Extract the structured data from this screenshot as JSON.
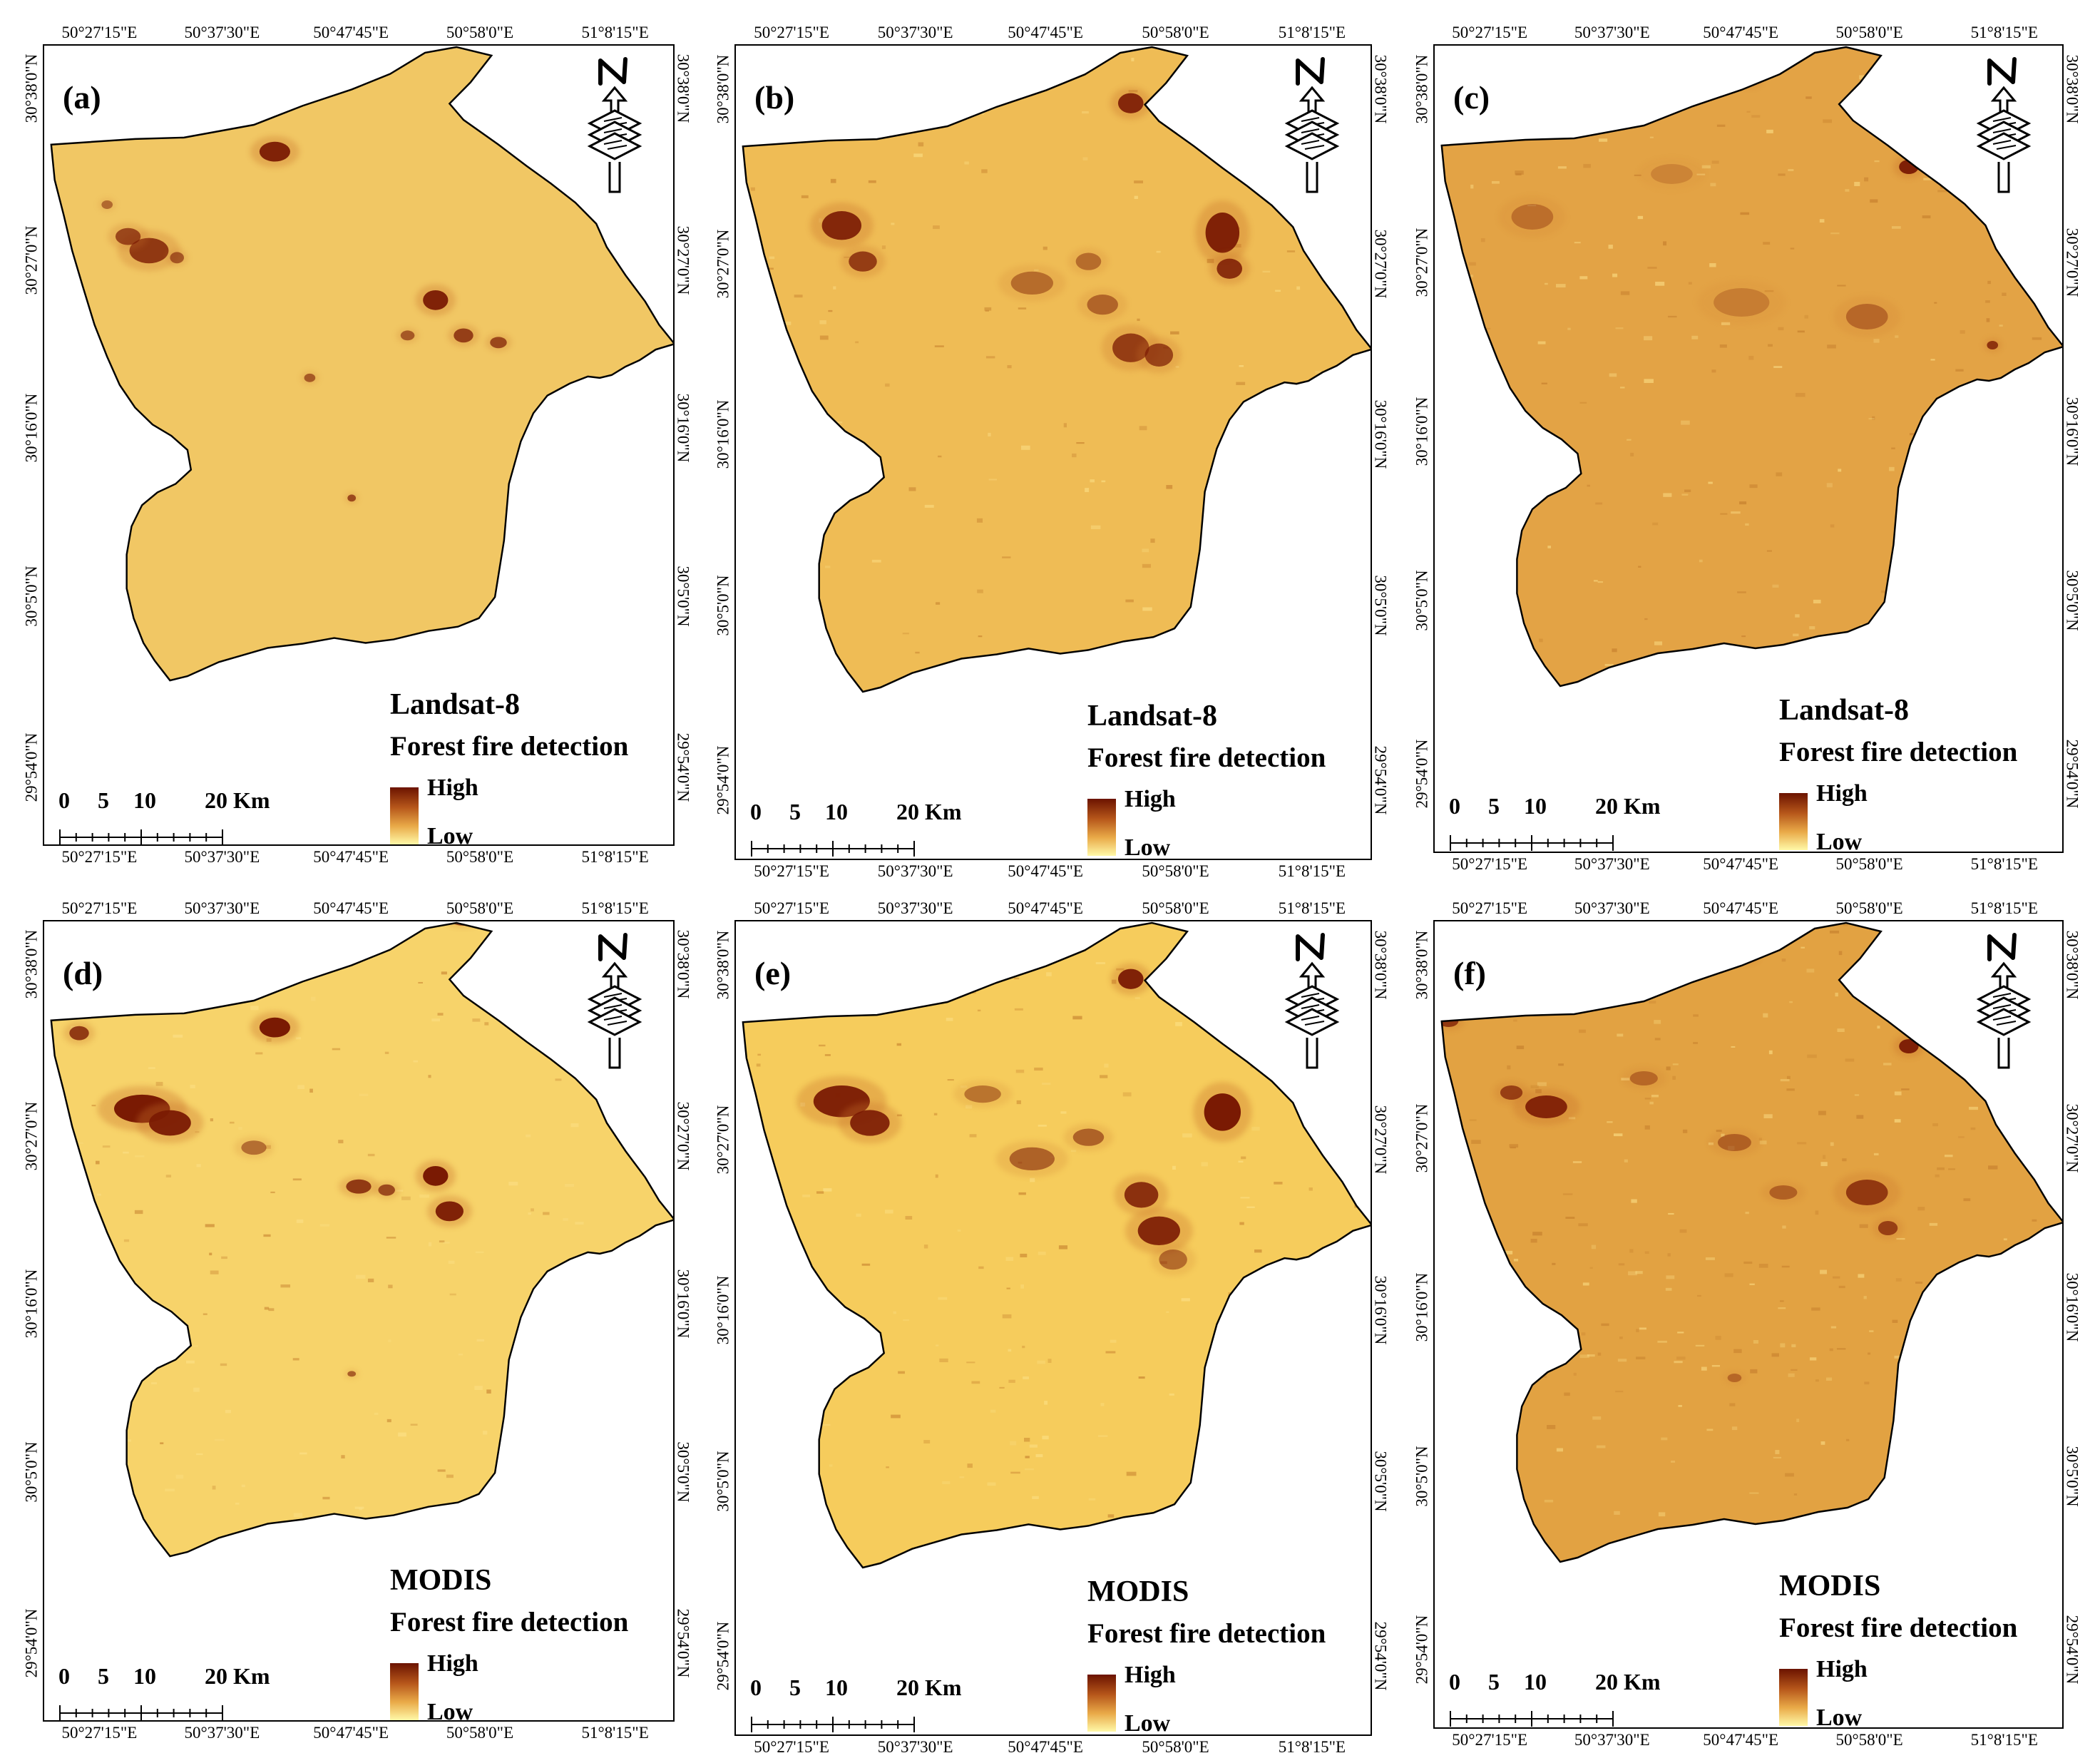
{
  "colors": {
    "low": "#fff9a8",
    "mid": "#e9aa48",
    "high": "#6b1300"
  },
  "axes": {
    "longitude_ticks": [
      "50°27'15\"E",
      "50°37'30\"E",
      "50°47'45\"E",
      "50°58'0\"E",
      "51°8'15\"E"
    ],
    "latitude_ticks": [
      "30°38'0\"N",
      "30°27'0\"N",
      "30°16'0\"N",
      "30°5'0\"N",
      "29°54'0\"N"
    ]
  },
  "legend": {
    "high": "High",
    "low": "Low"
  },
  "scale": {
    "labels": [
      "0",
      "5",
      "10",
      "20 Km"
    ]
  },
  "panels": [
    {
      "label": "(a)",
      "sensor": "Landsat-8",
      "title": "Forest fire detection",
      "style": "a"
    },
    {
      "label": "(b)",
      "sensor": "Landsat-8",
      "title": "Forest fire detection",
      "style": "b"
    },
    {
      "label": "(c)",
      "sensor": "Landsat-8",
      "title": "Forest fire detection",
      "style": "c"
    },
    {
      "label": "(d)",
      "sensor": "MODIS",
      "title": "Forest fire detection",
      "style": "d"
    },
    {
      "label": "(e)",
      "sensor": "MODIS",
      "title": "Forest fire detection",
      "style": "e"
    },
    {
      "label": "(f)",
      "sensor": "MODIS",
      "title": "Forest fire detection",
      "style": "f"
    }
  ]
}
